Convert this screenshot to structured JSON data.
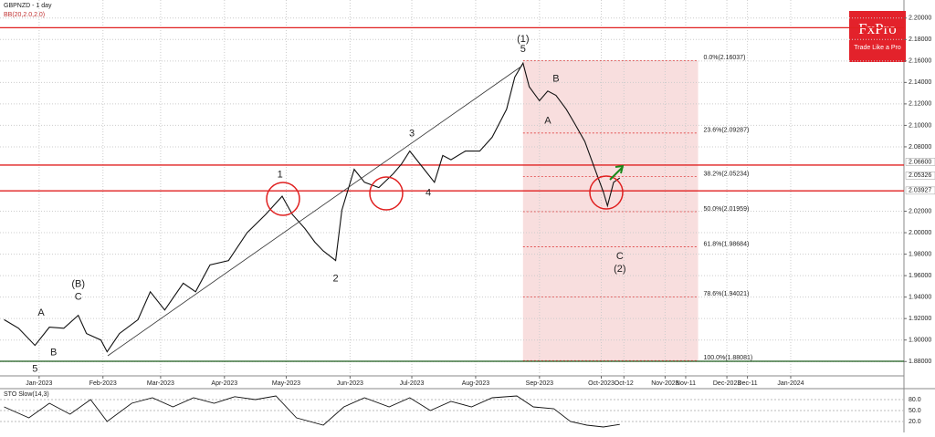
{
  "chart_data": {
    "type": "line",
    "title": "GBPNZD - 1 day",
    "indicator": "BB(20,2.0,2.0)",
    "brand": {
      "name": "FxPro",
      "tagline": "Trade Like a Pro"
    },
    "series": [
      {
        "name": "GBPNZD",
        "color": "#111111",
        "x": [
          -17,
          -10,
          -2,
          5,
          12,
          19,
          23,
          30,
          33,
          39,
          48,
          54,
          61,
          70,
          76,
          83,
          92,
          101,
          110,
          118,
          123,
          129,
          134,
          138,
          144,
          147,
          153,
          158,
          165,
          172,
          176,
          180,
          187,
          192,
          196,
          200,
          207,
          214,
          220,
          227,
          231,
          235,
          238,
          243,
          247,
          251,
          256,
          260,
          265,
          269,
          274,
          276,
          279,
          282
        ],
        "values": [
          1.919,
          1.911,
          1.895,
          1.912,
          1.911,
          1.923,
          1.906,
          1.9,
          1.889,
          1.906,
          1.919,
          1.945,
          1.928,
          1.953,
          1.945,
          1.97,
          1.974,
          2.0,
          2.017,
          2.034,
          2.017,
          2.004,
          1.991,
          1.983,
          1.974,
          2.021,
          2.059,
          2.047,
          2.042,
          2.055,
          2.064,
          2.076,
          2.059,
          2.047,
          2.072,
          2.068,
          2.076,
          2.076,
          2.089,
          2.115,
          2.145,
          2.158,
          2.136,
          2.123,
          2.132,
          2.128,
          2.115,
          2.102,
          2.085,
          2.064,
          2.038,
          2.025,
          2.047,
          2.051
        ]
      }
    ],
    "xlim": [
      -19,
      420
    ],
    "ylim": [
      1.87,
      2.21
    ],
    "grid": true,
    "yticks": [
      {
        "value": 2.2,
        "label": "2.20000"
      },
      {
        "value": 2.18,
        "label": "2.18000"
      },
      {
        "value": 2.16,
        "label": "2.16000"
      },
      {
        "value": 2.14,
        "label": "2.14000"
      },
      {
        "value": 2.12,
        "label": "2.12000"
      },
      {
        "value": 2.1,
        "label": "2.10000"
      },
      {
        "value": 2.08,
        "label": "2.08000"
      },
      {
        "value": 2.02,
        "label": "2.02000"
      },
      {
        "value": 2.0,
        "label": "2.00000"
      },
      {
        "value": 1.98,
        "label": "1.98000"
      },
      {
        "value": 1.96,
        "label": "1.96000"
      },
      {
        "value": 1.94,
        "label": "1.94000"
      },
      {
        "value": 1.92,
        "label": "1.92000"
      },
      {
        "value": 1.9,
        "label": "1.90000"
      },
      {
        "value": 1.88,
        "label": "1.88000"
      }
    ],
    "xticks": [
      {
        "value": 0,
        "label": "Jan-2023"
      },
      {
        "value": 31,
        "label": "Feb-2023"
      },
      {
        "value": 59,
        "label": "Mar-2023"
      },
      {
        "value": 90,
        "label": "Apr-2023"
      },
      {
        "value": 120,
        "label": "May-2023"
      },
      {
        "value": 151,
        "label": "Jun-2023"
      },
      {
        "value": 181,
        "label": "Jul-2023"
      },
      {
        "value": 212,
        "label": "Aug-2023"
      },
      {
        "value": 243,
        "label": "Sep-2023"
      },
      {
        "value": 273,
        "label": "Oct-2023"
      },
      {
        "value": 284,
        "label": "Oct-12"
      },
      {
        "value": 304,
        "label": "Nov-2023"
      },
      {
        "value": 314,
        "label": "Nov-11"
      },
      {
        "value": 334,
        "label": "Dec-2023"
      },
      {
        "value": 344,
        "label": "Dec-11"
      },
      {
        "value": 365,
        "label": "Jan-2024"
      }
    ],
    "levels": [
      {
        "value": 2.191,
        "color": "#e02020"
      },
      {
        "value": 2.063,
        "color": "#e02020"
      },
      {
        "value": 2.039,
        "color": "#e02020"
      },
      {
        "value": 1.8802,
        "color": "#1a5a1a"
      }
    ],
    "price_tags": [
      {
        "value": 2.066,
        "label": "2.06600"
      },
      {
        "value": 2.05326,
        "label": "2.05326"
      },
      {
        "value": 2.03927,
        "label": "2.03927"
      }
    ],
    "fib_range_x": [
      235,
      320
    ],
    "fib_levels": [
      {
        "value": 2.16037,
        "label": "0.0%(2.16037)"
      },
      {
        "value": 2.09287,
        "label": "23.6%(2.09287)"
      },
      {
        "value": 2.05234,
        "label": "38.2%(2.05234)"
      },
      {
        "value": 2.01959,
        "label": "50.0%(2.01959)"
      },
      {
        "value": 1.98684,
        "label": "61.8%(1.98684)"
      },
      {
        "value": 1.94021,
        "label": "78.6%(1.94021)"
      },
      {
        "value": 1.88081,
        "label": "100.0%(1.88081)"
      }
    ],
    "annotations": [
      {
        "text": "(1)",
        "x": 235,
        "y": 2.18
      },
      {
        "text": "5",
        "x": 235,
        "y": 2.171
      },
      {
        "text": "B",
        "x": 251,
        "y": 2.143
      },
      {
        "text": "A",
        "x": 247,
        "y": 2.104
      },
      {
        "text": "C",
        "x": 282,
        "y": 1.978
      },
      {
        "text": "(2)",
        "x": 282,
        "y": 1.966
      },
      {
        "text": "1",
        "x": 117,
        "y": 2.054
      },
      {
        "text": "2",
        "x": 144,
        "y": 1.957
      },
      {
        "text": "3",
        "x": 181,
        "y": 2.092
      },
      {
        "text": "4",
        "x": 189,
        "y": 2.037
      },
      {
        "text": "(B)",
        "x": 19,
        "y": 1.952
      },
      {
        "text": "C",
        "x": 19,
        "y": 1.94
      },
      {
        "text": "A",
        "x": 1,
        "y": 1.925
      },
      {
        "text": "B",
        "x": 7,
        "y": 1.888
      },
      {
        "text": "5",
        "x": -2,
        "y": 1.873
      }
    ],
    "oscillator": {
      "name": "STO Slow(14,3)",
      "ylim": [
        0,
        100
      ],
      "yticks": [
        {
          "value": 80,
          "label": "80.0"
        },
        {
          "value": 50,
          "label": "50.0"
        },
        {
          "value": 20,
          "label": "20.0"
        }
      ],
      "x": [
        -17,
        -5,
        5,
        15,
        25,
        33,
        45,
        55,
        65,
        75,
        85,
        95,
        105,
        115,
        125,
        138,
        148,
        158,
        170,
        180,
        190,
        200,
        210,
        220,
        232,
        240,
        250,
        258,
        266,
        274,
        282
      ],
      "values": [
        60,
        30,
        70,
        40,
        80,
        20,
        70,
        85,
        60,
        85,
        70,
        88,
        80,
        90,
        30,
        10,
        60,
        85,
        60,
        85,
        50,
        75,
        60,
        85,
        90,
        60,
        55,
        20,
        10,
        5,
        12
      ]
    }
  }
}
